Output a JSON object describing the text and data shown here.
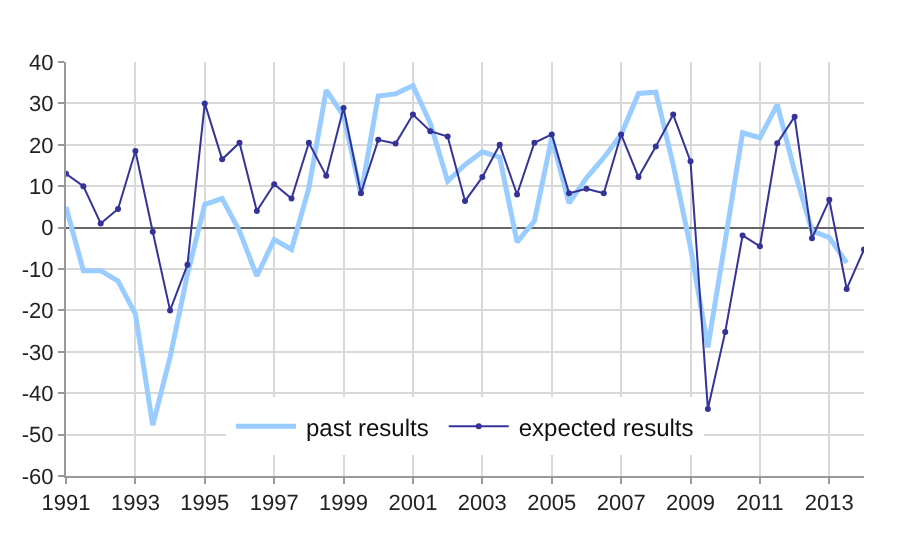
{
  "chart_data": {
    "type": "line",
    "x": [
      1991,
      1991.5,
      1992,
      1992.5,
      1993,
      1993.5,
      1994,
      1994.5,
      1995,
      1995.5,
      1996,
      1996.5,
      1997,
      1997.5,
      1998,
      1998.5,
      1999,
      1999.5,
      2000,
      2000.5,
      2001,
      2001.5,
      2002,
      2002.5,
      2003,
      2003.5,
      2004,
      2004.5,
      2005,
      2005.5,
      2006,
      2006.5,
      2007,
      2007.5,
      2008,
      2008.5,
      2009,
      2009.5,
      2010,
      2010.5,
      2011,
      2011.5,
      2012,
      2012.5,
      2013,
      2013.5,
      2014
    ],
    "series": [
      {
        "name": "past results",
        "color": "#99ccff",
        "marker": "none",
        "values": [
          5,
          -10.4,
          -10.4,
          -12.9,
          -20.9,
          -47.7,
          -31.3,
          -11.3,
          5.6,
          7,
          -0.8,
          -11.7,
          -2.9,
          -5.3,
          9.6,
          33.2,
          27,
          8,
          31.8,
          32.3,
          34.3,
          25.2,
          11.2,
          15.2,
          18.3,
          17,
          -3.5,
          1.6,
          21.7,
          5.9,
          12,
          16.9,
          22.5,
          32.4,
          32.7,
          15.2,
          -4.8,
          -28.9,
          -3.2,
          22.9,
          21.7,
          29.7,
          13.6,
          -0.8,
          -2.4,
          -8.5,
          null
        ]
      },
      {
        "name": "expected results",
        "color": "#333399",
        "marker": "circle",
        "values": [
          13,
          10,
          1,
          4.5,
          18.5,
          -1,
          -20,
          -9,
          30,
          16.5,
          20.5,
          4,
          10.5,
          7,
          20.5,
          12.5,
          28.9,
          8.3,
          21.2,
          20.3,
          27.3,
          23.3,
          22,
          6.4,
          12.2,
          20,
          8,
          20.5,
          22.5,
          8.3,
          9.4,
          8.3,
          22.5,
          12.2,
          19.6,
          27.3,
          16,
          -43.8,
          -25.2,
          -1.9,
          -4.5,
          20.4,
          26.8,
          -2.6,
          6.7,
          -14.8,
          -5.3
        ]
      }
    ],
    "xlim": [
      1991,
      2014
    ],
    "xticks": [
      1991,
      1993,
      1995,
      1997,
      1999,
      2001,
      2003,
      2005,
      2007,
      2009,
      2011,
      2013
    ],
    "ylim": [
      -60,
      40
    ],
    "yticks": [
      -60,
      -50,
      -40,
      -30,
      -20,
      -10,
      0,
      10,
      20,
      30,
      40
    ],
    "grid": true,
    "legend": "bottom"
  }
}
